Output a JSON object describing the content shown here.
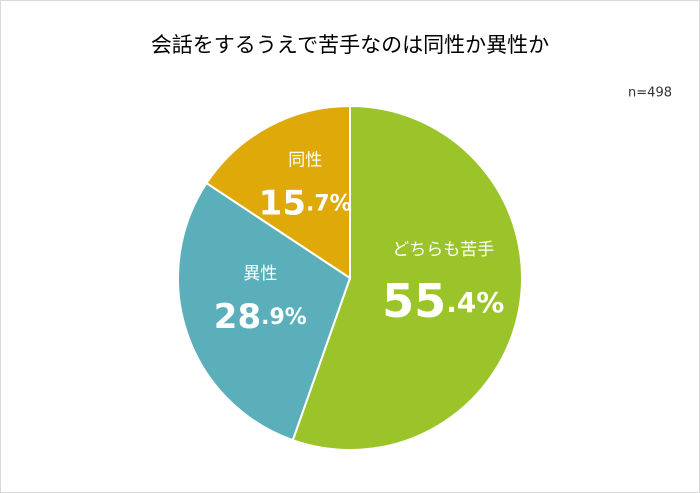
{
  "chart_data": {
    "type": "pie",
    "title": "会話をするうえで苦手なのは同性か異性か",
    "annotation": "n=498",
    "categories": [
      "どちらも苦手",
      "異性",
      "同性"
    ],
    "values": [
      55.4,
      28.9,
      15.7
    ],
    "value_labels": [
      "55.4%",
      "28.9%",
      "15.7%"
    ],
    "colors": [
      "#9bc42b",
      "#5aafbb",
      "#e0a90a"
    ]
  }
}
